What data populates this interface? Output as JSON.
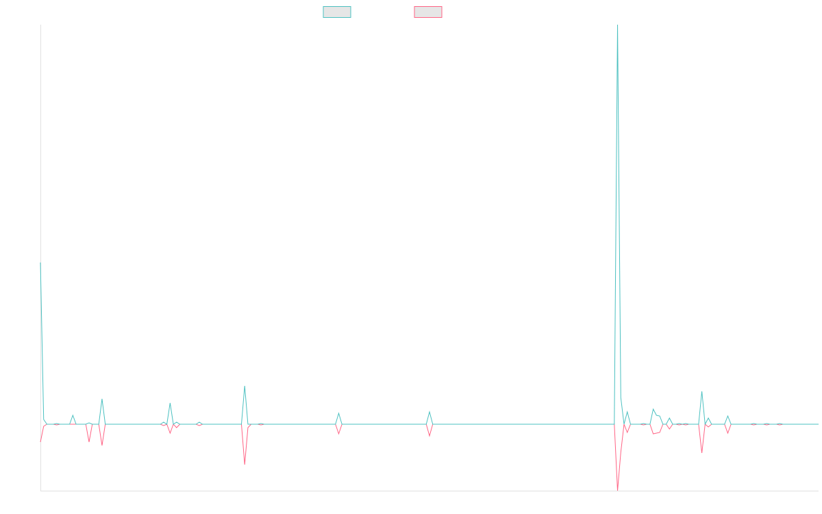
{
  "chart_data": {
    "type": "line",
    "legend": "top",
    "ylim": [
      -97,
      583
    ],
    "series": [
      {
        "color": "#4bc0c0",
        "values": [
          236,
          7,
          0,
          0,
          0,
          1,
          0,
          0,
          0,
          0,
          13,
          0,
          0,
          0,
          0,
          2,
          0,
          0,
          0,
          37,
          0,
          0,
          0,
          0,
          0,
          0,
          0,
          0,
          0,
          0,
          0,
          0,
          0,
          0,
          0,
          0,
          0,
          0,
          3,
          0,
          31,
          0,
          3,
          0,
          0,
          0,
          0,
          0,
          0,
          3,
          0,
          0,
          0,
          0,
          0,
          0,
          0,
          0,
          0,
          0,
          0,
          0,
          0,
          56,
          0,
          0,
          0,
          0,
          1,
          0,
          0,
          0,
          0,
          0,
          0,
          0,
          0,
          0,
          0,
          0,
          0,
          0,
          0,
          0,
          0,
          0,
          0,
          0,
          0,
          0,
          0,
          0,
          16,
          0,
          0,
          0,
          0,
          0,
          0,
          0,
          0,
          0,
          0,
          0,
          0,
          0,
          0,
          0,
          0,
          0,
          0,
          0,
          0,
          0,
          0,
          0,
          0,
          0,
          0,
          0,
          18,
          0,
          0,
          0,
          0,
          0,
          0,
          0,
          0,
          0,
          0,
          0,
          0,
          0,
          0,
          0,
          0,
          0,
          0,
          0,
          0,
          0,
          0,
          0,
          0,
          0,
          0,
          0,
          0,
          0,
          0,
          0,
          0,
          0,
          0,
          0,
          0,
          0,
          0,
          0,
          0,
          0,
          0,
          0,
          0,
          0,
          0,
          0,
          0,
          0,
          0,
          0,
          0,
          0,
          0,
          0,
          0,
          0,
          583,
          39,
          0,
          18,
          0,
          0,
          0,
          0,
          1,
          0,
          0,
          22,
          13,
          12,
          0,
          0,
          9,
          0,
          0,
          1,
          0,
          1,
          0,
          0,
          0,
          0,
          48,
          0,
          9,
          0,
          0,
          0,
          0,
          0,
          12,
          0,
          0,
          0,
          0,
          0,
          0,
          0,
          1,
          0,
          0,
          0,
          1,
          0,
          0,
          0,
          1,
          0,
          0,
          0,
          0,
          0,
          0,
          0,
          0,
          0,
          0,
          0,
          0
        ]
      },
      {
        "color": "#ff6384",
        "values": [
          -26,
          -3,
          0,
          0,
          0,
          -1,
          0,
          0,
          0,
          0,
          0,
          0,
          0,
          0,
          0,
          -26,
          0,
          0,
          0,
          -31,
          0,
          0,
          0,
          0,
          0,
          0,
          0,
          0,
          0,
          0,
          0,
          0,
          0,
          0,
          0,
          0,
          0,
          0,
          -2,
          0,
          -13,
          0,
          -5,
          0,
          0,
          0,
          0,
          0,
          0,
          -2,
          0,
          0,
          0,
          0,
          0,
          0,
          0,
          0,
          0,
          0,
          0,
          0,
          0,
          -59,
          -5,
          0,
          0,
          0,
          -1,
          0,
          0,
          0,
          0,
          0,
          0,
          0,
          0,
          0,
          0,
          0,
          0,
          0,
          0,
          0,
          0,
          0,
          0,
          0,
          0,
          0,
          0,
          0,
          -14,
          0,
          0,
          0,
          0,
          0,
          0,
          0,
          0,
          0,
          0,
          0,
          0,
          0,
          0,
          0,
          0,
          0,
          0,
          0,
          0,
          0,
          0,
          0,
          0,
          0,
          0,
          0,
          -17,
          0,
          0,
          0,
          0,
          0,
          0,
          0,
          0,
          0,
          0,
          0,
          0,
          0,
          0,
          0,
          0,
          0,
          0,
          0,
          0,
          0,
          0,
          0,
          0,
          0,
          0,
          0,
          0,
          0,
          0,
          0,
          0,
          0,
          0,
          0,
          0,
          0,
          0,
          0,
          0,
          0,
          0,
          0,
          0,
          0,
          0,
          0,
          0,
          0,
          0,
          0,
          0,
          0,
          0,
          0,
          0,
          0,
          -97,
          -41,
          0,
          -12,
          0,
          0,
          0,
          0,
          -1,
          0,
          0,
          -14,
          -13,
          -12,
          0,
          0,
          -7,
          0,
          0,
          -1,
          0,
          -1,
          0,
          0,
          0,
          0,
          -42,
          0,
          -4,
          0,
          0,
          0,
          0,
          0,
          -13,
          0,
          0,
          0,
          0,
          0,
          0,
          0,
          -1,
          0,
          0,
          0,
          -1,
          0,
          0,
          0,
          -1,
          0,
          0,
          0,
          0,
          0,
          0,
          0,
          0,
          0,
          0,
          0,
          0
        ]
      }
    ]
  }
}
